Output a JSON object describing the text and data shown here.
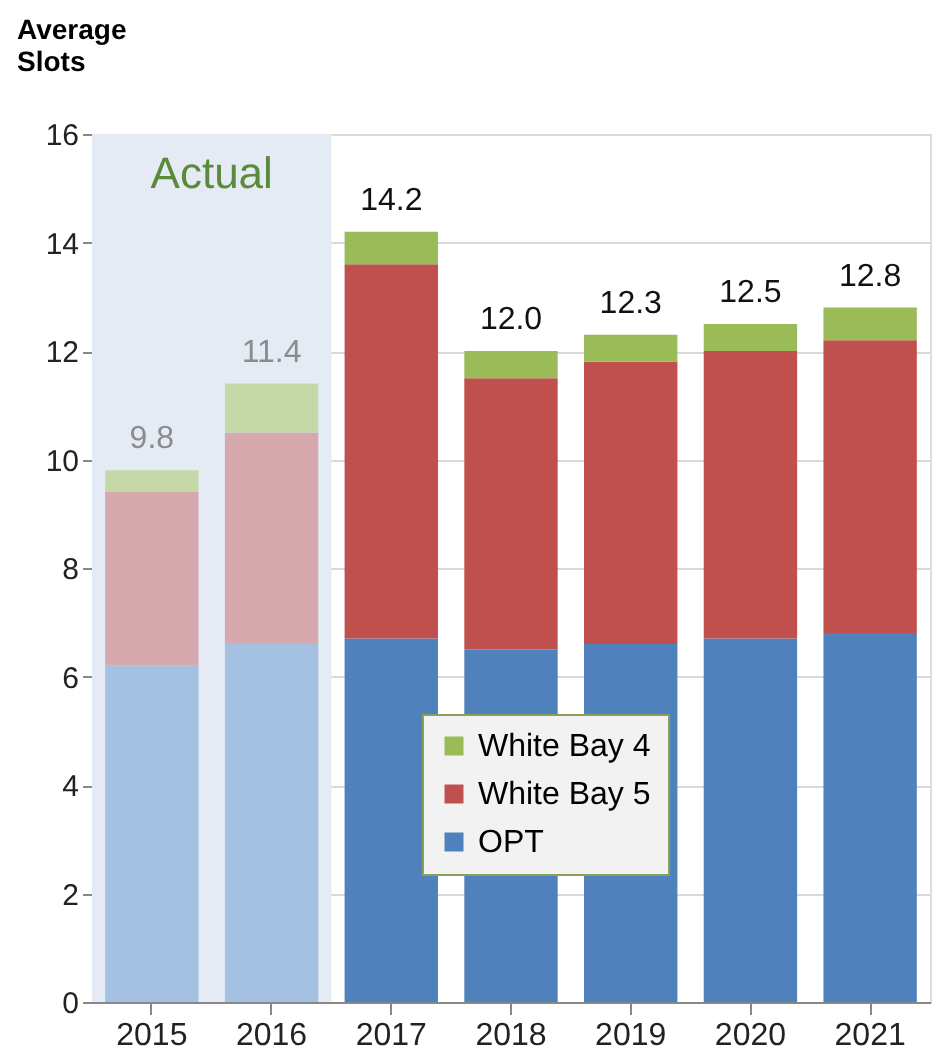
{
  "chart_data": {
    "type": "bar",
    "stacked": true,
    "ylabel": "Average Slots",
    "categories": [
      "2015",
      "2016",
      "2017",
      "2018",
      "2019",
      "2020",
      "2021"
    ],
    "series": [
      {
        "name": "OPT",
        "color": "#4f81bd",
        "colors": [
          "#a5c1e2",
          "#a5c1e2",
          "#4f81bd",
          "#4f81bd",
          "#4f81bd",
          "#4f81bd",
          "#4f81bd"
        ],
        "values": [
          6.2,
          6.6,
          6.7,
          6.5,
          6.6,
          6.7,
          6.8
        ]
      },
      {
        "name": "White Bay 5",
        "color": "#c0504d",
        "colors": [
          "#d5a9ae",
          "#d5a9ae",
          "#c0504d",
          "#c0504d",
          "#c0504d",
          "#c0504d",
          "#c0504d"
        ],
        "values": [
          3.2,
          3.9,
          6.9,
          5.0,
          5.2,
          5.3,
          5.4
        ]
      },
      {
        "name": "White Bay 4",
        "color": "#9bbb59",
        "colors": [
          "#c5d9a8",
          "#c5d9a8",
          "#9bbb59",
          "#9bbb59",
          "#9bbb59",
          "#9bbb59",
          "#9bbb59"
        ],
        "values": [
          0.4,
          0.9,
          0.6,
          0.5,
          0.5,
          0.5,
          0.6
        ]
      }
    ],
    "totals": [
      "9.8",
      "11.4",
      "14.2",
      "12.0",
      "12.3",
      "12.5",
      "12.8"
    ],
    "bands": [
      {
        "axis": "x",
        "from": "2015",
        "to": "2016",
        "label": "Actual",
        "color": "#e4ebf5"
      }
    ],
    "ylim": [
      0,
      16
    ],
    "yticks": [
      0,
      2,
      4,
      6,
      8,
      10,
      12,
      14,
      16
    ],
    "grid": "y",
    "legend": "bottom"
  }
}
